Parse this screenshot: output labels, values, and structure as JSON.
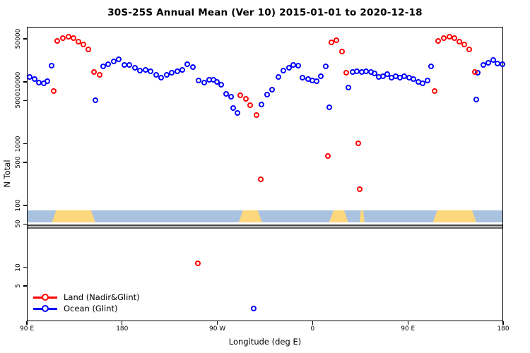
{
  "chart_data": {
    "type": "scatter",
    "title": "30S-25S Annual Mean (Ver 10)   2015-01-01 to 2020-12-18",
    "xlabel": "Longitude (deg E)",
    "ylabel": "N Total",
    "x_axis": {
      "range_deg_east": [
        90,
        540
      ],
      "ticks": [
        90,
        180,
        270,
        360,
        450,
        540
      ],
      "tick_labels": [
        "90 E",
        "180",
        "90 W",
        "0",
        "90 E",
        "180"
      ]
    },
    "y_axis": {
      "scale": "log",
      "ticks": [
        50000,
        10000,
        5000,
        1000,
        500,
        100,
        50,
        10,
        5
      ],
      "tick_labels": [
        "50000",
        "10000",
        "5000",
        "1000",
        "500",
        "100",
        "50",
        "10",
        "5"
      ]
    },
    "legend": {
      "position": "bottom-left",
      "entries": [
        "Land (Nadir&Glint)",
        "Ocean (Glint)"
      ]
    },
    "land_ocean_strip": {
      "ocean_color": "#a9c2e0",
      "land_color": "#fdd77c",
      "land_segments_lon": [
        [
          113,
          154
        ],
        [
          289.5,
          311.5
        ],
        [
          375,
          393
        ],
        [
          403.5,
          408.5
        ],
        [
          473,
          514
        ]
      ]
    },
    "series": [
      {
        "name": "Land (Nadir&Glint)",
        "color": "#ff0000",
        "points": [
          [
            114.7,
            7300
          ],
          [
            118,
            47000
          ],
          [
            123.4,
            52000
          ],
          [
            128.7,
            55000
          ],
          [
            133.4,
            52000
          ],
          [
            138.1,
            46000
          ],
          [
            142.7,
            41000
          ],
          [
            147.4,
            34000
          ],
          [
            152.8,
            14800
          ],
          [
            158.1,
            13400
          ],
          [
            250.9,
            12
          ],
          [
            291,
            6200
          ],
          [
            296.3,
            5500
          ],
          [
            300.3,
            4300
          ],
          [
            306.3,
            3000
          ],
          [
            310.5,
            270
          ],
          [
            373.8,
            650
          ],
          [
            377.1,
            45000
          ],
          [
            381.8,
            48500
          ],
          [
            387.1,
            32000
          ],
          [
            391.1,
            14500
          ],
          [
            402.5,
            1040
          ],
          [
            403.8,
            190
          ],
          [
            474.7,
            7200
          ],
          [
            478,
            47000
          ],
          [
            483.4,
            52000
          ],
          [
            488.7,
            55000
          ],
          [
            493.4,
            52000
          ],
          [
            498.1,
            46000
          ],
          [
            502.7,
            41000
          ],
          [
            507.4,
            34000
          ],
          [
            512.8,
            14800
          ]
        ]
      },
      {
        "name": "Ocean (Glint)",
        "color": "#0000ff",
        "points": [
          [
            92,
            12300
          ],
          [
            96.7,
            11400
          ],
          [
            100.7,
            10000
          ],
          [
            105.4,
            9800
          ],
          [
            108.7,
            10500
          ],
          [
            112.7,
            19000
          ],
          [
            154.1,
            5200
          ],
          [
            161.4,
            18300
          ],
          [
            166.1,
            20000
          ],
          [
            171.4,
            22000
          ],
          [
            176.1,
            24000
          ],
          [
            181.5,
            19300
          ],
          [
            186.1,
            19300
          ],
          [
            191.5,
            17400
          ],
          [
            196.2,
            15600
          ],
          [
            201.5,
            16100
          ],
          [
            206.2,
            15200
          ],
          [
            211.5,
            13400
          ],
          [
            216.2,
            12000
          ],
          [
            221.5,
            13400
          ],
          [
            226.2,
            14500
          ],
          [
            231.6,
            15200
          ],
          [
            236.2,
            16100
          ],
          [
            240.9,
            20000
          ],
          [
            246.2,
            17800
          ],
          [
            251.6,
            10800
          ],
          [
            256.9,
            10000
          ],
          [
            261.6,
            11200
          ],
          [
            265.6,
            11000
          ],
          [
            268.9,
            10200
          ],
          [
            272.9,
            9300
          ],
          [
            277.6,
            6600
          ],
          [
            282.3,
            5900
          ],
          [
            284.3,
            3900
          ],
          [
            288.3,
            3200
          ],
          [
            303.7,
            2.2
          ],
          [
            311,
            4400
          ],
          [
            316.3,
            6400
          ],
          [
            321,
            7700
          ],
          [
            327,
            12300
          ],
          [
            331.7,
            15600
          ],
          [
            337,
            17400
          ],
          [
            341,
            19300
          ],
          [
            345.7,
            19000
          ],
          [
            349.7,
            12000
          ],
          [
            355,
            11400
          ],
          [
            359,
            10800
          ],
          [
            363,
            10600
          ],
          [
            367,
            12600
          ],
          [
            371.7,
            18300
          ],
          [
            375,
            4000
          ],
          [
            393.1,
            8300
          ],
          [
            397.1,
            14800
          ],
          [
            401.1,
            15200
          ],
          [
            405.8,
            14800
          ],
          [
            409.8,
            15200
          ],
          [
            414.5,
            14800
          ],
          [
            417.8,
            14100
          ],
          [
            421.8,
            12300
          ],
          [
            425.8,
            12600
          ],
          [
            429.8,
            13700
          ],
          [
            433.8,
            12000
          ],
          [
            437.8,
            12600
          ],
          [
            441.8,
            12000
          ],
          [
            445.8,
            12600
          ],
          [
            450.5,
            12000
          ],
          [
            454.5,
            11400
          ],
          [
            459.2,
            10400
          ],
          [
            463.2,
            9800
          ],
          [
            467.8,
            10800
          ],
          [
            471.2,
            18300
          ],
          [
            514.1,
            5300
          ],
          [
            515.3,
            14500
          ],
          [
            520.6,
            19300
          ],
          [
            525.3,
            21000
          ],
          [
            530,
            23000
          ],
          [
            534,
            20300
          ],
          [
            538.6,
            20000
          ]
        ]
      }
    ],
    "separator_lines_y_value": 50
  }
}
